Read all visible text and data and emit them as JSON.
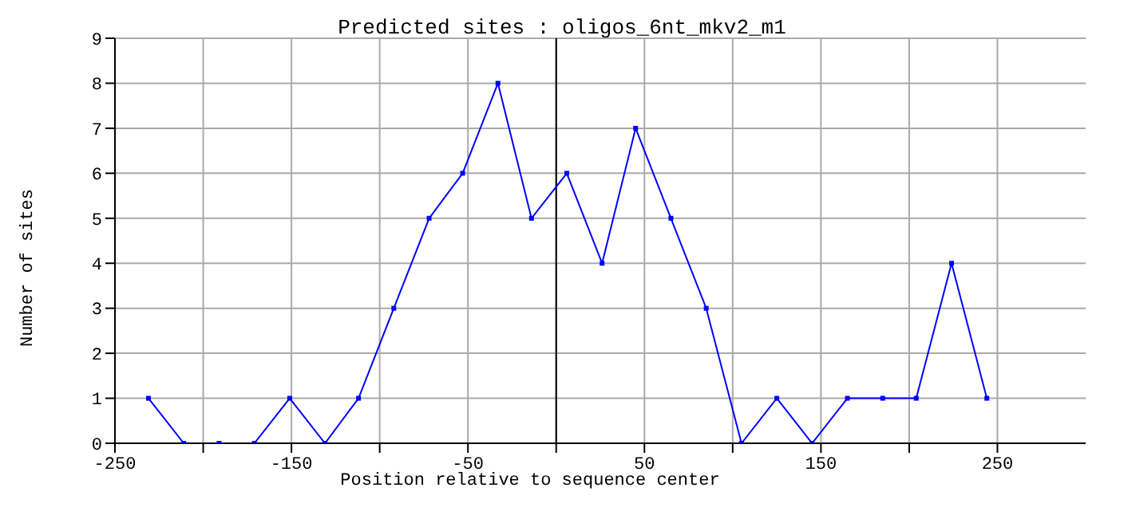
{
  "chart_data": {
    "type": "line",
    "title": "Predicted sites : oligos_6nt_mkv2_m1",
    "xlabel": "Position relative to sequence center",
    "ylabel": "Number of sites",
    "x": [
      -231,
      -211,
      -191,
      -171,
      -151,
      -131,
      -112,
      -92,
      -72,
      -53,
      -33,
      -14,
      6,
      26,
      45,
      65,
      85,
      105,
      125,
      145,
      165,
      185,
      204,
      224,
      244
    ],
    "series": [
      {
        "color": "#0000ff",
        "values": [
          1,
          0,
          0,
          0,
          1,
          0,
          1,
          3,
          5,
          6,
          8,
          5,
          6,
          4,
          7,
          5,
          3,
          0,
          1,
          0,
          1,
          1,
          1,
          4,
          1
        ]
      }
    ],
    "xlim": [
      -250,
      300
    ],
    "xticks": [
      -250,
      {
        "value": -200,
        "label": null
      },
      -150,
      {
        "value": -100,
        "label": null
      },
      -50,
      {
        "value": 0,
        "label": null
      },
      50,
      {
        "value": 100,
        "label": null
      },
      150,
      {
        "value": 200,
        "label": null
      },
      250
    ],
    "ylim": [
      0,
      9
    ],
    "yticks": [
      0,
      1,
      2,
      3,
      4,
      5,
      6,
      7,
      8,
      9
    ],
    "ref_lines": [
      {
        "axis": "x",
        "value": 0,
        "color": "#000000"
      }
    ],
    "grid": true,
    "marker": "square",
    "line_style": "solid"
  }
}
